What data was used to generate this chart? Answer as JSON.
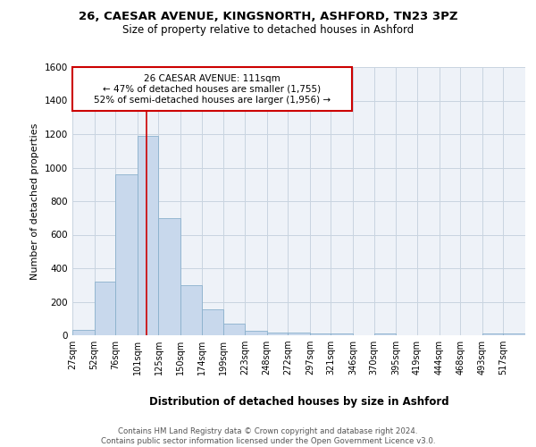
{
  "title1": "26, CAESAR AVENUE, KINGSNORTH, ASHFORD, TN23 3PZ",
  "title2": "Size of property relative to detached houses in Ashford",
  "xlabel": "Distribution of detached houses by size in Ashford",
  "ylabel": "Number of detached properties",
  "footnote": "Contains HM Land Registry data © Crown copyright and database right 2024.\nContains public sector information licensed under the Open Government Licence v3.0.",
  "annotation_line1": "26 CAESAR AVENUE: 111sqm",
  "annotation_line2": "← 47% of detached houses are smaller (1,755)",
  "annotation_line3": "52% of semi-detached houses are larger (1,956) →",
  "red_line_x": 111,
  "bar_edges": [
    27,
    52,
    76,
    101,
    125,
    150,
    174,
    199,
    223,
    248,
    272,
    297,
    321,
    346,
    370,
    395,
    419,
    444,
    468,
    493,
    517,
    542
  ],
  "bar_heights": [
    30,
    320,
    960,
    1190,
    700,
    300,
    155,
    70,
    25,
    15,
    15,
    10,
    10,
    0,
    10,
    0,
    0,
    0,
    0,
    10,
    10
  ],
  "bar_color": "#c8d8ec",
  "bar_edge_color": "#8ab0cc",
  "red_line_color": "#cc0000",
  "annotation_box_color": "#cc0000",
  "grid_color": "#c8d4e0",
  "background_color": "#eef2f8",
  "ylim": [
    0,
    1600
  ],
  "tick_labels": [
    "27sqm",
    "52sqm",
    "76sqm",
    "101sqm",
    "125sqm",
    "150sqm",
    "174sqm",
    "199sqm",
    "223sqm",
    "248sqm",
    "272sqm",
    "297sqm",
    "321sqm",
    "346sqm",
    "370sqm",
    "395sqm",
    "419sqm",
    "444sqm",
    "468sqm",
    "493sqm",
    "517sqm"
  ]
}
